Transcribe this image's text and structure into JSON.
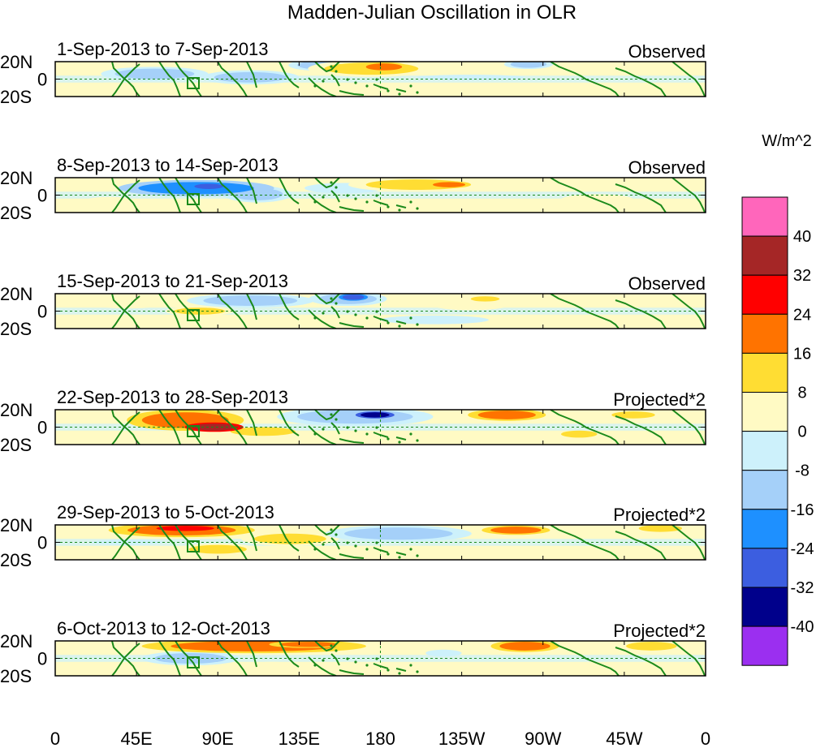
{
  "chart_data": {
    "type": "heatmap",
    "title": "Madden-Julian Oscillation in OLR",
    "xlabel": "",
    "ylabel": "",
    "x_ticks": [
      "0",
      "45E",
      "90E",
      "135E",
      "180",
      "135W",
      "90W",
      "45W",
      "0"
    ],
    "y_ticks": [
      "20N",
      "0",
      "20S"
    ],
    "xlim_deg": [
      0,
      360
    ],
    "ylim_deg": [
      -20,
      20
    ],
    "panels": [
      {
        "label": "1-Sep-2013 to 7-Sep-2013",
        "type": "Observed",
        "anomalies": [
          {
            "lon": 55,
            "lat": 6,
            "rlon": 22,
            "rlat": 6,
            "v": -14
          },
          {
            "lon": 108,
            "lat": 2,
            "rlon": 20,
            "rlat": 6,
            "v": -12
          },
          {
            "lon": 148,
            "lat": 16,
            "rlon": 14,
            "rlat": 5,
            "v": -10
          },
          {
            "lon": 175,
            "lat": 12,
            "rlon": 26,
            "rlat": 7,
            "v": 10
          },
          {
            "lon": 182,
            "lat": 14,
            "rlon": 10,
            "rlat": 4,
            "v": 18
          },
          {
            "lon": 262,
            "lat": 17,
            "rlon": 10,
            "rlat": 4,
            "v": -14
          },
          {
            "lon": 230,
            "lat": 2,
            "rlon": 30,
            "rlat": 3,
            "v": -5
          },
          {
            "lon": 30,
            "lat": -10,
            "rlon": 18,
            "rlat": 6,
            "v": 5
          }
        ]
      },
      {
        "label": "8-Sep-2013 to 14-Sep-2013",
        "type": "Observed",
        "anomalies": [
          {
            "lon": 78,
            "lat": 8,
            "rlon": 32,
            "rlat": 7,
            "v": -17
          },
          {
            "lon": 85,
            "lat": 10,
            "rlon": 8,
            "rlat": 3,
            "v": -26
          },
          {
            "lon": 112,
            "lat": 1,
            "rlon": 14,
            "rlat": 7,
            "v": -14
          },
          {
            "lon": 160,
            "lat": 8,
            "rlon": 22,
            "rlat": 6,
            "v": -6
          },
          {
            "lon": 200,
            "lat": 12,
            "rlon": 28,
            "rlat": 6,
            "v": 10
          },
          {
            "lon": 218,
            "lat": 12,
            "rlon": 9,
            "rlat": 3,
            "v": 18
          },
          {
            "lon": 300,
            "lat": -5,
            "rlon": 20,
            "rlat": 6,
            "v": 4
          },
          {
            "lon": 30,
            "lat": -8,
            "rlon": 15,
            "rlat": 6,
            "v": 4
          }
        ]
      },
      {
        "label": "15-Sep-2013 to 21-Sep-2013",
        "type": "Observed",
        "anomalies": [
          {
            "lon": 108,
            "lat": 12,
            "rlon": 26,
            "rlat": 6,
            "v": -12
          },
          {
            "lon": 162,
            "lat": 14,
            "rlon": 16,
            "rlat": 6,
            "v": -16
          },
          {
            "lon": 165,
            "lat": 16,
            "rlon": 6,
            "rlat": 3,
            "v": -26
          },
          {
            "lon": 80,
            "lat": 0,
            "rlon": 14,
            "rlat": 4,
            "v": 10
          },
          {
            "lon": 230,
            "lat": 8,
            "rlon": 22,
            "rlat": 7,
            "v": 5
          },
          {
            "lon": 238,
            "lat": 14,
            "rlon": 8,
            "rlat": 3,
            "v": 10
          },
          {
            "lon": 40,
            "lat": 8,
            "rlon": 18,
            "rlat": 5,
            "v": 4
          },
          {
            "lon": 210,
            "lat": -10,
            "rlon": 30,
            "rlat": 5,
            "v": -6
          }
        ]
      },
      {
        "label": "22-Sep-2013 to 28-Sep-2013",
        "type": "Projected*2",
        "anomalies": [
          {
            "lon": 72,
            "lat": 8,
            "rlon": 24,
            "rlat": 9,
            "v": 22
          },
          {
            "lon": 88,
            "lat": 0,
            "rlon": 12,
            "rlat": 4,
            "v": 36
          },
          {
            "lon": 166,
            "lat": 12,
            "rlon": 32,
            "rlat": 8,
            "v": -14
          },
          {
            "lon": 177,
            "lat": 14,
            "rlon": 8,
            "rlat": 3,
            "v": -34
          },
          {
            "lon": 250,
            "lat": 14,
            "rlon": 16,
            "rlat": 5,
            "v": 20
          },
          {
            "lon": 115,
            "lat": -5,
            "rlon": 18,
            "rlat": 5,
            "v": 8
          },
          {
            "lon": 290,
            "lat": -8,
            "rlon": 10,
            "rlat": 4,
            "v": 8
          },
          {
            "lon": 320,
            "lat": 14,
            "rlon": 12,
            "rlat": 4,
            "v": 8
          }
        ]
      },
      {
        "label": "29-Sep-2013 to 5-Oct-2013",
        "type": "Projected*2",
        "anomalies": [
          {
            "lon": 70,
            "lat": 14,
            "rlon": 30,
            "rlat": 6,
            "v": 20
          },
          {
            "lon": 72,
            "lat": 16,
            "rlon": 16,
            "rlat": 3,
            "v": 30
          },
          {
            "lon": 130,
            "lat": 4,
            "rlon": 20,
            "rlat": 6,
            "v": 10
          },
          {
            "lon": 190,
            "lat": 10,
            "rlon": 30,
            "rlat": 7,
            "v": -10
          },
          {
            "lon": 255,
            "lat": 14,
            "rlon": 14,
            "rlat": 4,
            "v": 20
          },
          {
            "lon": 90,
            "lat": -8,
            "rlon": 16,
            "rlat": 5,
            "v": 10
          },
          {
            "lon": 40,
            "lat": 0,
            "rlon": 20,
            "rlat": 3,
            "v": -5
          },
          {
            "lon": 335,
            "lat": 16,
            "rlon": 12,
            "rlat": 4,
            "v": 10
          }
        ]
      },
      {
        "label": "6-Oct-2013 to 12-Oct-2013",
        "type": "Projected*2",
        "anomalies": [
          {
            "lon": 110,
            "lat": 14,
            "rlon": 46,
            "rlat": 6,
            "v": 16
          },
          {
            "lon": 140,
            "lat": 16,
            "rlon": 16,
            "rlat": 3,
            "v": 20
          },
          {
            "lon": 75,
            "lat": 0,
            "rlon": 20,
            "rlat": 6,
            "v": -10
          },
          {
            "lon": 260,
            "lat": 14,
            "rlon": 14,
            "rlat": 5,
            "v": 16
          },
          {
            "lon": 215,
            "lat": 6,
            "rlon": 10,
            "rlat": 4,
            "v": -8
          },
          {
            "lon": 120,
            "lat": -8,
            "rlon": 16,
            "rlat": 4,
            "v": 5
          },
          {
            "lon": 330,
            "lat": 14,
            "rlon": 14,
            "rlat": 5,
            "v": 8
          }
        ]
      }
    ],
    "colorbar": {
      "unit": "W/m^2",
      "levels": [
        "40",
        "32",
        "24",
        "16",
        "8",
        "0",
        "-8",
        "-16",
        "-24",
        "-32",
        "-40"
      ],
      "bins": [
        {
          "min": 40,
          "max": 100,
          "color": "#ff66bb"
        },
        {
          "min": 32,
          "max": 40,
          "color": "#a52626"
        },
        {
          "min": 24,
          "max": 32,
          "color": "#ff0000"
        },
        {
          "min": 16,
          "max": 24,
          "color": "#ff7300"
        },
        {
          "min": 8,
          "max": 16,
          "color": "#ffdd33"
        },
        {
          "min": 0,
          "max": 8,
          "color": "#fffac4"
        },
        {
          "min": -8,
          "max": 0,
          "color": "#cdf1fb"
        },
        {
          "min": -16,
          "max": -8,
          "color": "#a5d0f9"
        },
        {
          "min": -24,
          "max": -16,
          "color": "#1e90ff"
        },
        {
          "min": -32,
          "max": -24,
          "color": "#3c5ee0"
        },
        {
          "min": -40,
          "max": -32,
          "color": "#00008b"
        },
        {
          "min": -100,
          "max": -40,
          "color": "#9b2ff0"
        }
      ]
    },
    "colors": {
      "coast": "#1b8a1b",
      "grid": "#1b8a1b",
      "frame": "#000000"
    }
  }
}
